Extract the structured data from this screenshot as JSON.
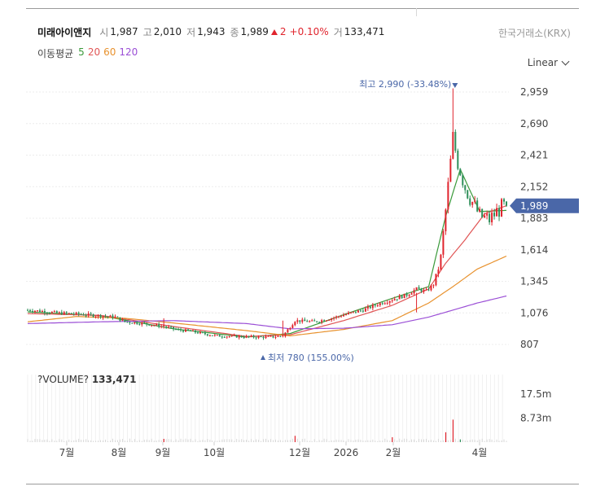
{
  "stock": {
    "name": "미래아이앤지",
    "open_label": "시",
    "open": "1,987",
    "high_label": "고",
    "high": "2,010",
    "low_label": "저",
    "low": "1,943",
    "close_label": "종",
    "close": "1,989",
    "change": "2",
    "change_pct": "+0.10%",
    "volume_label": "거",
    "volume": "133,471",
    "exchange": "한국거래소(KRX)"
  },
  "moving_avg": {
    "label": "이동평균",
    "periods": [
      {
        "value": "5",
        "color": "#3a9a3a"
      },
      {
        "value": "20",
        "color": "#e05555"
      },
      {
        "value": "60",
        "color": "#e8922e"
      },
      {
        "value": "120",
        "color": "#9b4fd6"
      }
    ]
  },
  "scale": {
    "label": "Linear"
  },
  "colors": {
    "up": "#e0242d",
    "down": "#2f8f5a",
    "price_tag": "#4a67a8",
    "volume": "#d8d8d8"
  },
  "chart_data": {
    "type": "candlestick",
    "y_ticks": [
      "2,959",
      "2,690",
      "2,421",
      "2,152",
      "1,883",
      "1,614",
      "1,345",
      "1,076",
      "807"
    ],
    "y_tick_values": [
      2959,
      2690,
      2421,
      2152,
      1883,
      1614,
      1345,
      1076,
      807
    ],
    "x_tick_labels": [
      "7월",
      "8월",
      "9월",
      "10월",
      "12월",
      "2026",
      "2월",
      "4월"
    ],
    "last_price_label": "1,989",
    "last_price": 1989,
    "high_annotation": "최고 2,990 (-33.48%)",
    "high_value": 2990,
    "low_annotation": "최저 780 (155.00%)",
    "low_value": 780,
    "volume_title": "?VOLUME?",
    "volume_value": "133,471",
    "volume_ticks": [
      "17.5m",
      "8.73m"
    ],
    "volume_tick_values": [
      17.5,
      8.73
    ],
    "price_keypoints": [
      [
        0,
        1100
      ],
      [
        6,
        1090
      ],
      [
        12,
        1075
      ],
      [
        18,
        1070
      ],
      [
        24,
        1060
      ],
      [
        30,
        1050
      ],
      [
        36,
        1040
      ],
      [
        40,
        1000
      ],
      [
        48,
        985
      ],
      [
        56,
        960
      ],
      [
        62,
        930
      ],
      [
        67,
        920
      ],
      [
        72,
        900
      ],
      [
        78,
        880
      ],
      [
        86,
        875
      ],
      [
        94,
        870
      ],
      [
        100,
        870
      ],
      [
        105,
        880
      ],
      [
        110,
        1010
      ],
      [
        118,
        1000
      ],
      [
        125,
        1030
      ],
      [
        132,
        1070
      ],
      [
        138,
        1100
      ],
      [
        144,
        1150
      ],
      [
        150,
        1190
      ],
      [
        156,
        1230
      ],
      [
        160,
        1280
      ],
      [
        164,
        1260
      ],
      [
        167,
        1320
      ],
      [
        170,
        1540
      ],
      [
        173,
        2150
      ],
      [
        175,
        2560
      ],
      [
        177,
        2370
      ],
      [
        180,
        2150
      ],
      [
        183,
        2020
      ],
      [
        186,
        1900
      ],
      [
        190,
        1870
      ],
      [
        194,
        1960
      ],
      [
        197,
        1989
      ]
    ],
    "spikes_up": [
      [
        56,
        1030
      ],
      [
        84,
        880
      ],
      [
        105,
        1010
      ],
      [
        160,
        1080
      ],
      [
        175,
        2990
      ]
    ],
    "volume_spikes": [
      [
        56,
        1.2
      ],
      [
        110,
        2.3
      ],
      [
        150,
        1.8
      ],
      [
        172,
        3.6
      ],
      [
        175,
        8.2
      ],
      [
        178,
        1.0
      ]
    ],
    "ma_keypoints": {
      "5": [
        [
          0,
          1085
        ],
        [
          30,
          1052
        ],
        [
          60,
          940
        ],
        [
          90,
          870
        ],
        [
          108,
          900
        ],
        [
          130,
          1060
        ],
        [
          150,
          1200
        ],
        [
          165,
          1300
        ],
        [
          172,
          1900
        ],
        [
          178,
          2300
        ],
        [
          186,
          1940
        ],
        [
          197,
          1950
        ]
      ],
      "20": [
        [
          0,
          1070
        ],
        [
          30,
          1055
        ],
        [
          60,
          960
        ],
        [
          90,
          875
        ],
        [
          108,
          890
        ],
        [
          130,
          1010
        ],
        [
          150,
          1140
        ],
        [
          165,
          1280
        ],
        [
          172,
          1500
        ],
        [
          180,
          1700
        ],
        [
          188,
          1920
        ],
        [
          197,
          1990
        ]
      ],
      "60": [
        [
          0,
          1000
        ],
        [
          20,
          1045
        ],
        [
          40,
          1030
        ],
        [
          60,
          990
        ],
        [
          90,
          925
        ],
        [
          108,
          880
        ],
        [
          130,
          935
        ],
        [
          150,
          1010
        ],
        [
          165,
          1160
        ],
        [
          175,
          1300
        ],
        [
          185,
          1450
        ],
        [
          197,
          1560
        ]
      ],
      "120": [
        [
          0,
          985
        ],
        [
          30,
          1000
        ],
        [
          60,
          1010
        ],
        [
          90,
          985
        ],
        [
          108,
          940
        ],
        [
          130,
          945
        ],
        [
          150,
          975
        ],
        [
          165,
          1040
        ],
        [
          175,
          1100
        ],
        [
          185,
          1160
        ],
        [
          197,
          1220
        ]
      ]
    }
  }
}
